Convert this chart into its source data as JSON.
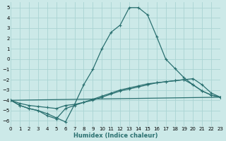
{
  "xlabel": "Humidex (Indice chaleur)",
  "xlim": [
    0,
    23
  ],
  "ylim": [
    -6.5,
    5.5
  ],
  "xticks": [
    0,
    1,
    2,
    3,
    4,
    5,
    6,
    7,
    8,
    9,
    10,
    11,
    12,
    13,
    14,
    15,
    16,
    17,
    18,
    19,
    20,
    21,
    22,
    23
  ],
  "yticks": [
    -6,
    -5,
    -4,
    -3,
    -2,
    -1,
    0,
    1,
    2,
    3,
    4,
    5
  ],
  "bg_color": "#cce9e8",
  "grid_color": "#aad4d3",
  "line_color": "#2a7070",
  "line_width": 0.9,
  "marker": "+",
  "marker_size": 3.5,
  "tick_fontsize": 5.0,
  "xlabel_fontsize": 6.0,
  "curve1_x": [
    0,
    1,
    2,
    3,
    4,
    5,
    6,
    7,
    8,
    9,
    10,
    11,
    12,
    13,
    14,
    15,
    16,
    17,
    18,
    19,
    20,
    21,
    22,
    23
  ],
  "curve1_y": [
    -4,
    -4.5,
    -4.8,
    -5.0,
    -5.3,
    -5.7,
    -6.1,
    -4.4,
    -2.5,
    -1.0,
    1.0,
    2.6,
    3.3,
    5.0,
    5.0,
    4.3,
    2.2,
    0.0,
    -0.9,
    -1.8,
    -2.5,
    -3.1,
    -3.5,
    -3.7
  ],
  "curve2_x": [
    0,
    1,
    2,
    3,
    4,
    5,
    6,
    7,
    8,
    9,
    10,
    11,
    12,
    13,
    14,
    15,
    16,
    17,
    18,
    19,
    20,
    21,
    22,
    23
  ],
  "curve2_y": [
    -4,
    -4.5,
    -4.8,
    -5.0,
    -5.5,
    -5.8,
    -4.8,
    -4.5,
    -4.2,
    -3.9,
    -3.6,
    -3.3,
    -3.0,
    -2.8,
    -2.6,
    -2.4,
    -2.3,
    -2.2,
    -2.1,
    -2.0,
    -2.5,
    -3.1,
    -3.5,
    -3.7
  ],
  "curve3_x": [
    0,
    23
  ],
  "curve3_y": [
    -4,
    -3.7
  ],
  "curve4_x": [
    0,
    1,
    2,
    3,
    4,
    5,
    6,
    7,
    8,
    9,
    10,
    11,
    12,
    13,
    14,
    15,
    16,
    17,
    18,
    19,
    20,
    21,
    22,
    23
  ],
  "curve4_y": [
    -4,
    -4.3,
    -4.5,
    -4.6,
    -4.7,
    -4.8,
    -4.5,
    -4.4,
    -4.2,
    -4.0,
    -3.7,
    -3.4,
    -3.1,
    -2.9,
    -2.7,
    -2.5,
    -2.3,
    -2.2,
    -2.1,
    -2.0,
    -1.9,
    -2.5,
    -3.3,
    -3.7
  ]
}
